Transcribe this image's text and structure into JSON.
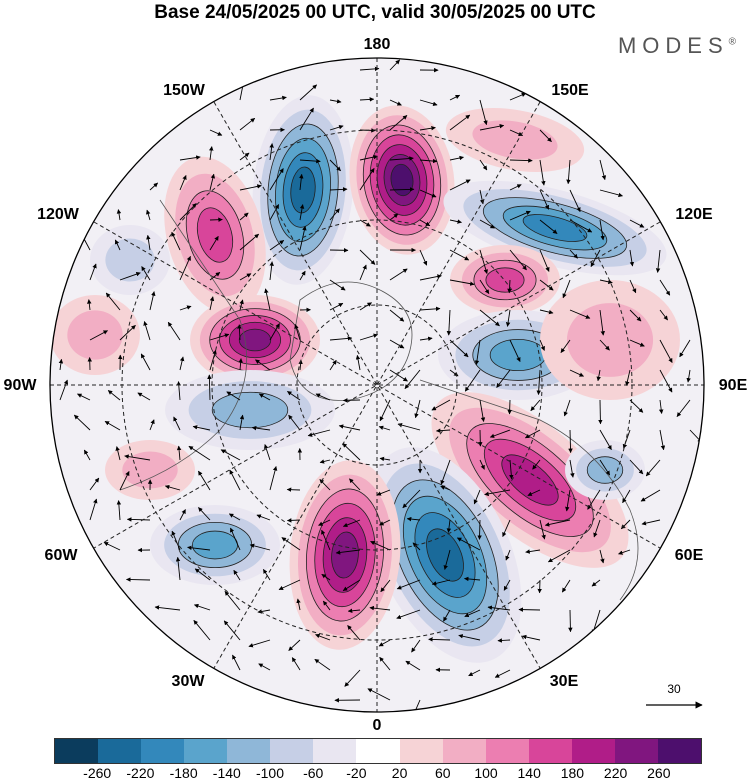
{
  "header": {
    "title": "Base 24/05/2025 00 UTC, valid 30/05/2025 00 UTC",
    "brand": "MODES",
    "brand_mark": "®"
  },
  "map": {
    "projection": "north polar stereographic",
    "center": "North Pole",
    "longitude_labels": {
      "l180": "180",
      "l150w": "150W",
      "l150e": "150E",
      "l120w": "120W",
      "l120e": "120E",
      "l90w": "90W",
      "l90e": "90E",
      "l60w": "60W",
      "l60e": "60E",
      "l30w": "30W",
      "l30e": "30E",
      "l0": "0"
    },
    "reference_vector": "30"
  },
  "colorbar": {
    "colors": [
      "#0b3c5d",
      "#1a6a9a",
      "#3388bb",
      "#5aa4cc",
      "#8fb7d8",
      "#c6cfe6",
      "#e9e6f1",
      "#ffffff",
      "#f6d3d6",
      "#f2aec4",
      "#ec7eb1",
      "#d8459a",
      "#b01d88",
      "#80167f",
      "#4d0f6d"
    ],
    "ticks": [
      "-260",
      "-220",
      "-180",
      "-140",
      "-100",
      "-60",
      "-20",
      "20",
      "60",
      "100",
      "140",
      "180",
      "220",
      "260"
    ]
  }
}
